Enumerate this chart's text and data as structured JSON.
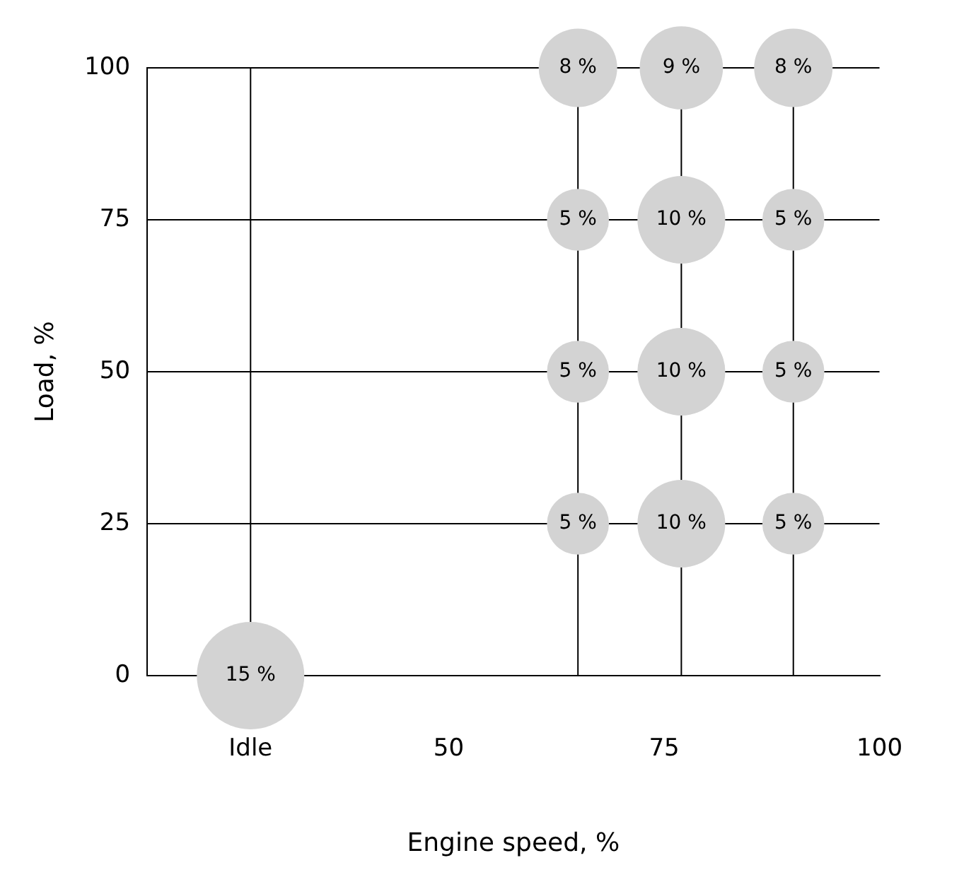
{
  "chart_data": {
    "type": "bubble",
    "xlabel": "Engine speed, %",
    "ylabel": "Load, %",
    "x": [
      27,
      65,
      77,
      90,
      65,
      77,
      90,
      65,
      77,
      90,
      65,
      77,
      90
    ],
    "values": [
      0,
      100,
      100,
      100,
      75,
      75,
      75,
      50,
      50,
      50,
      25,
      25,
      25
    ],
    "sizes": [
      1,
      0.533,
      0.6,
      0.533,
      0.333,
      0.667,
      0.333,
      0.333,
      0.667,
      0.333,
      0.333,
      0.667,
      0.333
    ],
    "annotations": [
      {
        "text": "15 %",
        "x": 27,
        "y": 0
      },
      {
        "text": "8 %",
        "x": 65,
        "y": 100
      },
      {
        "text": "9 %",
        "x": 77,
        "y": 100
      },
      {
        "text": "8 %",
        "x": 90,
        "y": 100
      },
      {
        "text": "5 %",
        "x": 65,
        "y": 75
      },
      {
        "text": "10 %",
        "x": 77,
        "y": 75
      },
      {
        "text": "5 %",
        "x": 90,
        "y": 75
      },
      {
        "text": "5 %",
        "x": 65,
        "y": 50
      },
      {
        "text": "10 %",
        "x": 77,
        "y": 50
      },
      {
        "text": "5 %",
        "x": 90,
        "y": 50
      },
      {
        "text": "5 %",
        "x": 65,
        "y": 25
      },
      {
        "text": "10 %",
        "x": 77,
        "y": 25
      },
      {
        "text": "5 %",
        "x": 90,
        "y": 25
      }
    ],
    "color": "#d3d3d3",
    "xlim": [
      15,
      100
    ],
    "xticks": [
      {
        "value": 27,
        "label": "Idle"
      },
      50,
      75,
      100
    ],
    "ylim": [
      0,
      100
    ],
    "yticks": [
      0,
      25,
      50,
      75,
      100
    ],
    "grid": "y",
    "legend": false,
    "ref_lines": [
      {
        "axis": "x",
        "value": 27,
        "color": "#000000"
      },
      {
        "axis": "x",
        "value": 65,
        "color": "#000000"
      },
      {
        "axis": "x",
        "value": 77,
        "color": "#000000"
      },
      {
        "axis": "x",
        "value": 90,
        "color": "#000000"
      }
    ]
  }
}
